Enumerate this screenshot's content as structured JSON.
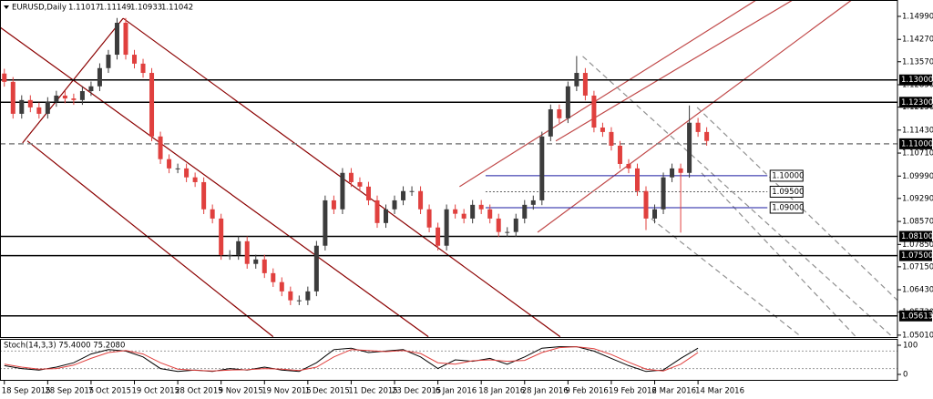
{
  "chart_data": [
    {
      "type": "candlestick",
      "title": "EURUSD,Daily",
      "header_values": [
        1.11017,
        1.11149,
        1.10933,
        1.11042
      ],
      "up_color": "#3c3c3c",
      "down_color": "#e0403e",
      "open": [
        1.132,
        1.1294,
        1.1194,
        1.1237,
        1.1214,
        1.1194,
        1.1231,
        1.1251,
        1.1242,
        1.1237,
        1.1265,
        1.128,
        1.1337,
        1.1379,
        1.1479,
        1.1379,
        1.1351,
        1.1322,
        1.1123,
        1.1052,
        1.1023,
        1.1023,
        1.0995,
        1.098,
        1.0895,
        1.0866,
        1.0752,
        1.0752,
        1.0795,
        1.0724,
        1.0738,
        1.0695,
        1.0667,
        1.0638,
        1.061,
        1.061,
        1.0638,
        1.0781,
        1.0923,
        1.0895,
        1.1009,
        1.098,
        1.0966,
        1.0923,
        1.0852,
        1.0895,
        1.0923,
        1.0952,
        1.0952,
        1.0895,
        1.0838,
        1.0781,
        1.0895,
        1.0881,
        1.0866,
        1.0909,
        1.0895,
        1.0866,
        1.0824,
        1.0824,
        1.0866,
        1.0909,
        1.0923,
        1.1123,
        1.1208,
        1.118,
        1.128,
        1.1322,
        1.1251,
        1.1151,
        1.1137,
        1.1094,
        1.1037,
        1.1023,
        1.0952,
        1.0866,
        1.0895,
        1.0995,
        1.1023,
        1.1009,
        1.1166,
        1.1137
      ],
      "high": [
        1.1335,
        1.1309,
        1.1252,
        1.1252,
        1.1229,
        1.1246,
        1.1266,
        1.1266,
        1.1257,
        1.128,
        1.1295,
        1.1352,
        1.1394,
        1.1494,
        1.1494,
        1.1394,
        1.1366,
        1.1337,
        1.1138,
        1.1067,
        1.1038,
        1.1038,
        1.101,
        1.0995,
        1.091,
        1.0881,
        1.0767,
        1.081,
        1.081,
        1.0753,
        1.0753,
        1.071,
        1.0682,
        1.0653,
        1.0625,
        1.0653,
        1.0796,
        1.0938,
        1.0938,
        1.1024,
        1.1024,
        1.0995,
        1.0981,
        1.0938,
        1.091,
        1.0938,
        1.0967,
        1.0967,
        1.0967,
        1.091,
        1.0853,
        1.091,
        1.091,
        1.0896,
        1.0924,
        1.0924,
        1.091,
        1.0881,
        1.0839,
        1.0881,
        1.0924,
        1.0938,
        1.1138,
        1.1223,
        1.1223,
        1.1295,
        1.1375,
        1.1337,
        1.1266,
        1.1166,
        1.1152,
        1.1109,
        1.1052,
        1.1038,
        1.0967,
        1.091,
        1.101,
        1.1038,
        1.1038,
        1.122,
        1.1181,
        1.1152
      ],
      "low": [
        1.1279,
        1.1179,
        1.1179,
        1.1199,
        1.1179,
        1.1179,
        1.1216,
        1.1227,
        1.1222,
        1.1222,
        1.125,
        1.1265,
        1.1322,
        1.1364,
        1.1364,
        1.1336,
        1.1307,
        1.1108,
        1.1037,
        1.1008,
        1.1008,
        1.098,
        1.0965,
        1.088,
        1.0851,
        1.0737,
        1.0737,
        1.0737,
        1.0709,
        1.0709,
        1.068,
        1.0652,
        1.0623,
        1.0595,
        1.0595,
        1.0595,
        1.0623,
        1.0766,
        1.088,
        1.088,
        1.0965,
        1.0951,
        1.0908,
        1.0837,
        1.0837,
        1.088,
        1.0908,
        1.0937,
        1.088,
        1.0823,
        1.0766,
        1.0766,
        1.0866,
        1.0851,
        1.0851,
        1.088,
        1.0851,
        1.0809,
        1.0809,
        1.0809,
        1.0851,
        1.0894,
        1.0908,
        1.1108,
        1.1165,
        1.1165,
        1.1265,
        1.1236,
        1.1136,
        1.1122,
        1.1079,
        1.1022,
        1.1008,
        1.0937,
        1.083,
        1.0851,
        1.088,
        1.098,
        1.0822,
        1.0994,
        1.1122,
        1.1094
      ],
      "close": [
        1.1294,
        1.1194,
        1.1237,
        1.1214,
        1.1194,
        1.1231,
        1.1251,
        1.1242,
        1.1237,
        1.1265,
        1.128,
        1.1337,
        1.1379,
        1.1479,
        1.1379,
        1.1351,
        1.1322,
        1.1123,
        1.1052,
        1.1023,
        1.1023,
        1.0995,
        1.098,
        1.0895,
        1.0866,
        1.0752,
        1.0752,
        1.0795,
        1.0724,
        1.0738,
        1.0695,
        1.0667,
        1.0638,
        1.061,
        1.061,
        1.0638,
        1.0781,
        1.0923,
        1.0895,
        1.1009,
        1.098,
        1.0966,
        1.0923,
        1.0852,
        1.0895,
        1.0923,
        1.0952,
        1.0952,
        1.0895,
        1.0838,
        1.0781,
        1.0895,
        1.0881,
        1.0866,
        1.0909,
        1.0895,
        1.0866,
        1.0824,
        1.0824,
        1.0866,
        1.0909,
        1.0923,
        1.1123,
        1.1208,
        1.118,
        1.128,
        1.1322,
        1.1251,
        1.1151,
        1.1137,
        1.1094,
        1.1037,
        1.1023,
        1.0952,
        1.0866,
        1.0895,
        1.0995,
        1.1023,
        1.1009,
        1.1166,
        1.1137,
        1.1109
      ],
      "xlim": [
        -0.5,
        103
      ],
      "xticks": [
        {
          "value": 0,
          "label": "18 Sep 2015"
        },
        {
          "value": 5,
          "label": "28 Sep 2015"
        },
        {
          "value": 10,
          "label": "7 Oct 2015"
        },
        {
          "value": 15,
          "label": "19 Oct 2015"
        },
        {
          "value": 20,
          "label": "28 Oct 2015"
        },
        {
          "value": 25,
          "label": "9 Nov 2015"
        },
        {
          "value": 30,
          "label": "19 Nov 2015"
        },
        {
          "value": 35,
          "label": "1 Dec 2015"
        },
        {
          "value": 40,
          "label": "11 Dec 2015"
        },
        {
          "value": 45,
          "label": "23 Dec 2015"
        },
        {
          "value": 50,
          "label": "6 Jan 2016"
        },
        {
          "value": 55,
          "label": "18 Jan 2016"
        },
        {
          "value": 60,
          "label": "28 Jan 2016"
        },
        {
          "value": 65,
          "label": "9 Feb 2016"
        },
        {
          "value": 70,
          "label": "19 Feb 2016"
        },
        {
          "value": 75,
          "label": "2 Mar 2016"
        },
        {
          "value": 80,
          "label": "14 Mar 2016"
        }
      ],
      "ylim": [
        1.0495,
        1.1536
      ],
      "yticks": [
        {
          "value": 1.1499,
          "label": "1.14990"
        },
        {
          "value": 1.1427,
          "label": "1.14270"
        },
        {
          "value": 1.1357,
          "label": "1.13570"
        },
        {
          "value": 1.1285,
          "label": "1.12850"
        },
        {
          "value": 1.1215,
          "label": "1.12150"
        },
        {
          "value": 1.1143,
          "label": "1.11430"
        },
        {
          "value": 1.1071,
          "label": "1.10710"
        },
        {
          "value": 1.0999,
          "label": "1.09990"
        },
        {
          "value": 1.0929,
          "label": "1.09290"
        },
        {
          "value": 1.0857,
          "label": "1.08570"
        },
        {
          "value": 1.0785,
          "label": "1.07850"
        },
        {
          "value": 1.0715,
          "label": "1.07150"
        },
        {
          "value": 1.0643,
          "label": "1.06430"
        },
        {
          "value": 1.0573,
          "label": "1.05730"
        },
        {
          "value": 1.0501,
          "label": "1.05010"
        }
      ],
      "levels": [
        {
          "value": 1.13,
          "label": "1.13000",
          "color": "#000000",
          "style": "solid"
        },
        {
          "value": 1.123,
          "label": "1.12300",
          "color": "#000000",
          "style": "solid"
        },
        {
          "value": 1.11,
          "label": "1.11000",
          "color": "#808080",
          "style": "dashed"
        },
        {
          "value": 1.1,
          "label": "1.10000",
          "color": "#1a1aa0",
          "style": "solid",
          "x_start": 55.5,
          "x_end": 88
        },
        {
          "value": 1.095,
          "label": "1.09500",
          "color": "#606060",
          "style": "dotted",
          "x_start": 55.5,
          "x_end": 88
        },
        {
          "value": 1.09,
          "label": "1.09000",
          "color": "#1a1aa0",
          "style": "solid",
          "x_start": 55.5,
          "x_end": 88
        },
        {
          "value": 1.081,
          "label": "1.08100",
          "color": "#000000",
          "style": "solid"
        },
        {
          "value": 1.075,
          "label": "1.07500",
          "color": "#000000",
          "style": "solid"
        },
        {
          "value": 1.05613,
          "label": "1.05613",
          "color": "#000000",
          "style": "solid"
        }
      ],
      "trendlines": [
        {
          "x": [
            -0.5,
            48.9
          ],
          "y": [
            1.1465,
            1.0496
          ],
          "color": "#8b0000",
          "style": "solid"
        },
        {
          "x": [
            2.65,
            31
          ],
          "y": [
            1.1109,
            1.0496
          ],
          "color": "#8b0000",
          "style": "solid"
        },
        {
          "x": [
            13.7,
            64.1
          ],
          "y": [
            1.1493,
            1.0496
          ],
          "color": "#8b0000",
          "style": "solid"
        },
        {
          "x": [
            2.1,
            13.7
          ],
          "y": [
            1.1103,
            1.1493
          ],
          "color": "#8b0000",
          "style": "solid"
        },
        {
          "x": [
            52.5,
            86.7
          ],
          "y": [
            1.0966,
            1.155
          ],
          "color": "#c04848",
          "style": "solid"
        },
        {
          "x": [
            61.5,
            97.7
          ],
          "y": [
            1.0823,
            1.155
          ],
          "color": "#c04848",
          "style": "solid"
        },
        {
          "x": [
            63.6,
            90.9
          ],
          "y": [
            1.1109,
            1.155
          ],
          "color": "#c04848",
          "style": "solid"
        },
        {
          "x": [
            66.7,
            102.4
          ],
          "y": [
            1.1374,
            1.0496
          ],
          "color": "#909090",
          "style": "dashed"
        },
        {
          "x": [
            74.6,
            91.9
          ],
          "y": [
            1.0866,
            1.0496
          ],
          "color": "#909090",
          "style": "dashed"
        },
        {
          "x": [
            79.9,
            103
          ],
          "y": [
            1.1214,
            1.061
          ],
          "color": "#909090",
          "style": "dashed"
        },
        {
          "x": [
            80.4,
            98.2
          ],
          "y": [
            1.1009,
            1.0496
          ],
          "color": "#909090",
          "style": "dashed"
        }
      ]
    },
    {
      "type": "line",
      "title": "Stoch(14,3,3) 75.4000 75.2080",
      "x": [
        0,
        2,
        4,
        6,
        8,
        10,
        12,
        14,
        16,
        18,
        20,
        22,
        24,
        26,
        28,
        30,
        32,
        34,
        36,
        38,
        40,
        42,
        44,
        46,
        48,
        50,
        52,
        54,
        56,
        58,
        60,
        62,
        64,
        66,
        68,
        70,
        72,
        74,
        76,
        78,
        80
      ],
      "series": [
        {
          "color": "#000000",
          "values": [
            30,
            20,
            15,
            25,
            40,
            70,
            85,
            80,
            60,
            20,
            10,
            15,
            10,
            20,
            15,
            25,
            15,
            10,
            40,
            85,
            90,
            75,
            80,
            85,
            60,
            20,
            50,
            45,
            55,
            35,
            60,
            90,
            95,
            95,
            80,
            55,
            30,
            10,
            15,
            55,
            90
          ]
        },
        {
          "color": "#e0403e",
          "values": [
            35,
            25,
            18,
            20,
            32,
            55,
            75,
            82,
            70,
            40,
            18,
            14,
            12,
            15,
            16,
            20,
            18,
            13,
            25,
            60,
            85,
            82,
            78,
            82,
            72,
            40,
            35,
            47,
            50,
            45,
            48,
            75,
            92,
            95,
            88,
            68,
            42,
            18,
            12,
            35,
            75
          ]
        }
      ],
      "xlim": [
        -0.5,
        103
      ],
      "ylim": [
        0,
        100
      ],
      "yticks": [
        0,
        100
      ],
      "levels": [
        20,
        80
      ]
    }
  ]
}
